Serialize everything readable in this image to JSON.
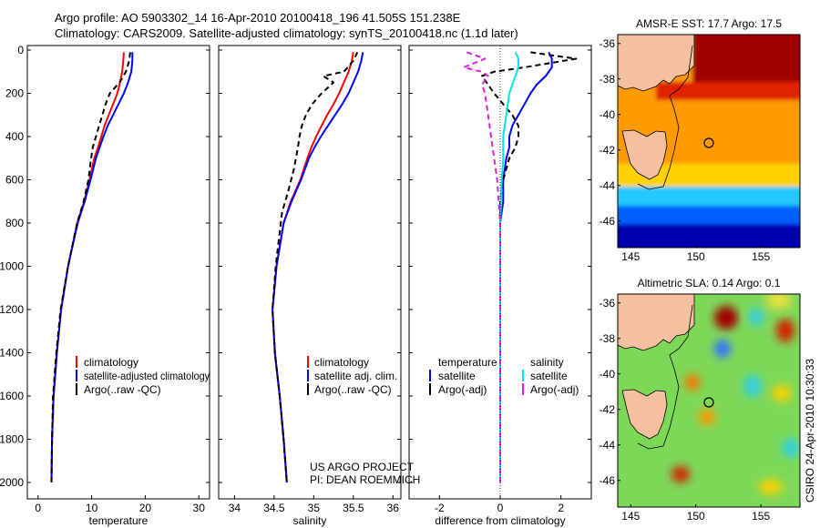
{
  "header": {
    "title_line1": "Argo profile: AO 5903302_14 16-Apr-2010 20100418_196 41.505S 151.238E",
    "title_line2": "Climatology: CARS2009. Satellite-adjusted climatology: synTS_20100418.nc (1.1d later)"
  },
  "credits": {
    "project": "US ARGO PROJECT",
    "pi": "PI: DEAN ROEMMICH"
  },
  "side_label": "CSIRO 24-Apr-2010 10:30:33",
  "colors": {
    "climatology": "#ff0000",
    "satellite_adj": "#0000ff",
    "argo": "#000000",
    "temp_diff": "#0000ff",
    "sal_diff": "#00e5e5",
    "argo_sal_diff": "#e020e0"
  },
  "chart_data": [
    {
      "type": "line",
      "panel": "temperature",
      "xlabel": "temperature",
      "ylabel": "",
      "xlim": [
        -2,
        32
      ],
      "ylim": [
        2050,
        0
      ],
      "y_reversed": true,
      "xticks": [
        "0",
        "10",
        "20",
        "30"
      ],
      "xtick_values": [
        0,
        10,
        20,
        30
      ],
      "yticks": [
        "0",
        "200",
        "400",
        "600",
        "800",
        "1000",
        "1200",
        "1400",
        "1600",
        "1800",
        "2000"
      ],
      "ytick_values": [
        0,
        200,
        400,
        600,
        800,
        1000,
        1200,
        1400,
        1600,
        1800,
        2000
      ],
      "legend": [
        "climatology",
        "satellite-adjusted climatology",
        "Argo(..raw -QC)"
      ],
      "series": [
        {
          "name": "climatology",
          "style": "solid",
          "color_key": "climatology",
          "x": [
            16.0,
            15.9,
            15.7,
            15.3,
            14.8,
            14.0,
            13.2,
            12.4,
            11.8,
            11.2,
            10.5,
            9.6,
            8.6,
            7.3,
            5.6,
            4.3,
            3.5,
            2.9,
            2.6,
            2.5
          ],
          "y": [
            10,
            50,
            100,
            150,
            200,
            250,
            300,
            350,
            400,
            450,
            500,
            600,
            700,
            800,
            1000,
            1200,
            1400,
            1600,
            1800,
            2000
          ]
        },
        {
          "name": "satellite-adjusted climatology",
          "style": "solid",
          "color_key": "satellite_adj",
          "x": [
            17.6,
            17.6,
            17.4,
            16.8,
            16.0,
            15.0,
            14.0,
            13.0,
            12.2,
            11.5,
            10.8,
            9.8,
            8.7,
            7.4,
            5.6,
            4.3,
            3.5,
            2.9,
            2.6,
            2.5
          ],
          "y": [
            10,
            50,
            100,
            150,
            200,
            250,
            300,
            350,
            400,
            450,
            500,
            600,
            700,
            800,
            1000,
            1200,
            1400,
            1600,
            1800,
            2000
          ]
        },
        {
          "name": "Argo(..raw -QC)",
          "style": "dashed",
          "color_key": "argo",
          "x": [
            17.2,
            17.0,
            16.4,
            15.2,
            13.4,
            12.6,
            12.0,
            11.4,
            10.8,
            10.2,
            9.9,
            9.4,
            8.5,
            7.3,
            5.6,
            4.2,
            3.4,
            2.8,
            2.6,
            2.5
          ],
          "y": [
            10,
            50,
            100,
            150,
            200,
            250,
            300,
            350,
            400,
            450,
            500,
            600,
            700,
            800,
            1000,
            1200,
            1400,
            1600,
            1800,
            2000
          ]
        }
      ]
    },
    {
      "type": "line",
      "panel": "salinity",
      "xlabel": "salinity",
      "ylabel": "",
      "xlim": [
        33.8,
        36.1
      ],
      "ylim": [
        2050,
        0
      ],
      "y_reversed": true,
      "xticks": [
        "34",
        "34.5",
        "35",
        "35.5",
        "36"
      ],
      "xtick_values": [
        34,
        34.5,
        35,
        35.5,
        36
      ],
      "legend": [
        "climatology",
        "satellite adj. clim.",
        "Argo(..raw -QC)"
      ],
      "series": [
        {
          "name": "climatology",
          "style": "solid",
          "color_key": "climatology",
          "x": [
            35.5,
            35.48,
            35.44,
            35.38,
            35.32,
            35.25,
            35.17,
            35.1,
            35.03,
            34.97,
            34.92,
            34.83,
            34.71,
            34.62,
            34.53,
            34.48,
            34.51,
            34.57,
            34.62,
            34.66
          ],
          "y": [
            10,
            50,
            100,
            150,
            200,
            250,
            300,
            350,
            400,
            450,
            500,
            600,
            700,
            800,
            1000,
            1200,
            1400,
            1600,
            1800,
            2000
          ]
        },
        {
          "name": "satellite adj. clim.",
          "style": "solid",
          "color_key": "satellite_adj",
          "x": [
            35.62,
            35.6,
            35.56,
            35.5,
            35.44,
            35.36,
            35.27,
            35.18,
            35.09,
            35.01,
            34.94,
            34.84,
            34.72,
            34.62,
            34.53,
            34.48,
            34.51,
            34.57,
            34.62,
            34.66
          ],
          "y": [
            10,
            50,
            100,
            150,
            200,
            250,
            300,
            350,
            400,
            450,
            500,
            600,
            700,
            800,
            1000,
            1200,
            1400,
            1600,
            1800,
            2000
          ]
        },
        {
          "name": "Argo(..raw -QC)",
          "style": "dashed",
          "color_key": "argo",
          "x": [
            35.55,
            35.5,
            35.38,
            35.12,
            35.25,
            35.1,
            34.98,
            34.9,
            34.85,
            34.82,
            34.8,
            34.75,
            34.68,
            34.6,
            34.52,
            34.48,
            34.51,
            34.57,
            34.62,
            34.66
          ],
          "y": [
            10,
            50,
            100,
            120,
            150,
            200,
            250,
            300,
            350,
            400,
            450,
            550,
            650,
            750,
            1000,
            1200,
            1400,
            1600,
            1800,
            2000
          ]
        }
      ]
    },
    {
      "type": "line",
      "panel": "difference",
      "xlabel": "difference from climatology",
      "ylabel": "",
      "xlim": [
        -3,
        3
      ],
      "ylim": [
        2050,
        0
      ],
      "y_reversed": true,
      "xticks": [
        "-2",
        "0",
        "2"
      ],
      "xtick_values": [
        -2,
        0,
        2
      ],
      "legend_titles": [
        "temperature",
        "salinity"
      ],
      "legend": [
        "satellite",
        "Argo(-adj)",
        "satellite",
        "Argo(-adj)"
      ],
      "series": [
        {
          "name": "temperature satellite",
          "style": "solid",
          "color_key": "temp_diff",
          "x": [
            1.6,
            1.7,
            1.7,
            1.5,
            1.2,
            1.0,
            0.8,
            0.6,
            0.4,
            0.3,
            0.3,
            0.2,
            0.1,
            0.1,
            0,
            0
          ],
          "y": [
            10,
            40,
            80,
            120,
            160,
            200,
            250,
            300,
            350,
            400,
            450,
            500,
            600,
            700,
            800,
            2000
          ]
        },
        {
          "name": "temperature Argo(-adj)",
          "style": "dashed",
          "color_key": "argo",
          "x": [
            1.0,
            2.5,
            0.8,
            -0.2,
            -0.6,
            -0.4,
            -0.2,
            0.1,
            0.4,
            0.6,
            0.6,
            0.5,
            0.3,
            0.1,
            0,
            0,
            0
          ],
          "y": [
            10,
            40,
            80,
            100,
            120,
            160,
            200,
            250,
            300,
            350,
            400,
            450,
            500,
            600,
            700,
            800,
            2000
          ]
        },
        {
          "name": "salinity satellite",
          "style": "solid",
          "color_key": "sal_diff",
          "x": [
            0.5,
            0.6,
            0.6,
            0.5,
            0.4,
            0.3,
            0.2,
            0.1,
            0.1,
            0.05,
            0,
            0
          ],
          "y": [
            10,
            40,
            80,
            120,
            160,
            200,
            300,
            400,
            500,
            600,
            800,
            2000
          ]
        },
        {
          "name": "salinity Argo(-adj)",
          "style": "dashed",
          "color_key": "argo_sal_diff",
          "x": [
            -1.1,
            -0.5,
            -1.2,
            -0.6,
            -0.4,
            -0.6,
            -0.5,
            -0.4,
            -0.3,
            -0.2,
            -0.1,
            0,
            0
          ],
          "y": [
            10,
            40,
            80,
            100,
            120,
            160,
            200,
            300,
            400,
            500,
            600,
            800,
            2000
          ]
        }
      ]
    },
    {
      "type": "heatmap",
      "panel": "sst_map",
      "title": "AMSR-E SST: 17.7 Argo: 17.5",
      "xlim": [
        144,
        158
      ],
      "ylim": [
        -47.5,
        -35.5
      ],
      "xticks": [
        "145",
        "150",
        "155"
      ],
      "xtick_values": [
        145,
        150,
        155
      ],
      "yticks": [
        "-36",
        "-38",
        "-40",
        "-42",
        "-44",
        "-46"
      ],
      "ytick_values": [
        -36,
        -38,
        -40,
        -42,
        -44,
        -46
      ],
      "profile_location": [
        151.238,
        -41.505
      ]
    },
    {
      "type": "heatmap",
      "panel": "sla_map",
      "title": "Altimetric SLA: 0.14 Argo: 0.1",
      "xlim": [
        144,
        158
      ],
      "ylim": [
        -47.5,
        -35.5
      ],
      "xticks": [
        "145",
        "150",
        "155"
      ],
      "xtick_values": [
        145,
        150,
        155
      ],
      "yticks": [
        "-36",
        "-38",
        "-40",
        "-42",
        "-44",
        "-46"
      ],
      "ytick_values": [
        -36,
        -38,
        -40,
        -42,
        -44,
        -46
      ],
      "profile_location": [
        151.238,
        -41.505
      ]
    }
  ]
}
